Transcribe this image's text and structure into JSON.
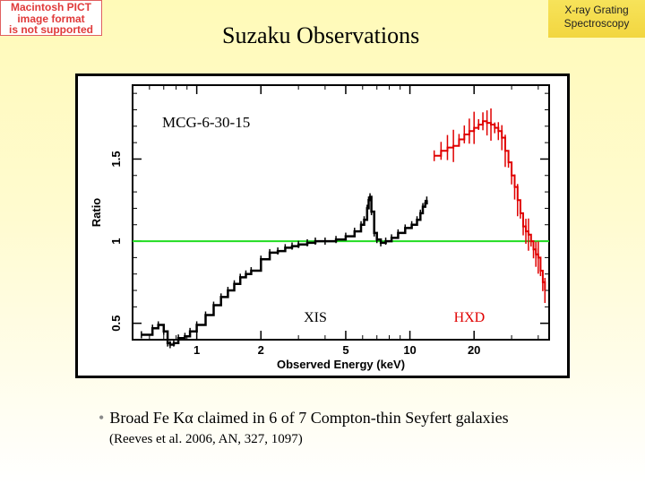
{
  "placeholder": {
    "lines": [
      "Macintosh PICT",
      "image format",
      "is not supported"
    ]
  },
  "title": "Suzaku Observations",
  "corner_label": {
    "line1": "X-ray Grating",
    "line2": "Spectroscopy"
  },
  "colors": {
    "xis": "#000000",
    "hxd": "#e00000",
    "unity_line": "#22dd22",
    "corner_bg": "#f4dc4c"
  },
  "chart_data": {
    "type": "line",
    "title": "MCG-6-30-15",
    "xlabel": "Observed Energy (keV)",
    "ylabel": "Ratio",
    "x_scale": "log",
    "xlim": [
      0.5,
      45
    ],
    "ylim": [
      0.4,
      1.95
    ],
    "x_ticks": [
      1,
      2,
      5,
      10,
      20
    ],
    "x_tick_labels": [
      "1",
      "2",
      "5",
      "10",
      "20"
    ],
    "y_ticks": [
      0.5,
      1,
      1.5
    ],
    "y_tick_labels": [
      "0.5",
      "1",
      "1.5"
    ],
    "reference_line": 1.0,
    "annotations": [
      "XIS",
      "HXD"
    ],
    "series": [
      {
        "name": "XIS",
        "color": "#000000",
        "x": [
          0.55,
          0.62,
          0.66,
          0.7,
          0.73,
          0.75,
          0.78,
          0.82,
          0.88,
          0.93,
          1.0,
          1.1,
          1.2,
          1.3,
          1.4,
          1.5,
          1.6,
          1.7,
          1.8,
          2.0,
          2.2,
          2.4,
          2.6,
          2.8,
          3.0,
          3.3,
          3.6,
          4.0,
          4.5,
          5.0,
          5.5,
          5.9,
          6.1,
          6.3,
          6.4,
          6.5,
          6.6,
          6.8,
          7.0,
          7.3,
          7.7,
          8.2,
          8.8,
          9.5,
          10.2,
          10.8,
          11.2,
          11.5,
          11.8,
          12.0
        ],
        "y": [
          0.43,
          0.47,
          0.49,
          0.45,
          0.38,
          0.37,
          0.38,
          0.41,
          0.42,
          0.45,
          0.49,
          0.55,
          0.61,
          0.66,
          0.7,
          0.74,
          0.78,
          0.8,
          0.82,
          0.89,
          0.93,
          0.94,
          0.96,
          0.97,
          0.98,
          0.99,
          1.0,
          1.0,
          1.01,
          1.03,
          1.06,
          1.1,
          1.13,
          1.2,
          1.25,
          1.27,
          1.18,
          1.05,
          1.01,
          0.99,
          1.0,
          1.02,
          1.05,
          1.08,
          1.1,
          1.13,
          1.17,
          1.21,
          1.23,
          1.25
        ]
      },
      {
        "name": "HXD",
        "color": "#e00000",
        "x": [
          13,
          14,
          15,
          16,
          17,
          18,
          19,
          20,
          21,
          22,
          23,
          24,
          25,
          26,
          27,
          28,
          29,
          30,
          31,
          32,
          33,
          34,
          35,
          36,
          37,
          38,
          39,
          40,
          41,
          42,
          43
        ],
        "y": [
          1.52,
          1.55,
          1.57,
          1.58,
          1.62,
          1.65,
          1.67,
          1.69,
          1.71,
          1.73,
          1.72,
          1.71,
          1.69,
          1.67,
          1.63,
          1.55,
          1.48,
          1.4,
          1.33,
          1.25,
          1.17,
          1.09,
          1.06,
          1.04,
          1.0,
          0.95,
          0.92,
          0.9,
          0.82,
          0.75,
          0.7
        ]
      }
    ]
  },
  "bullet": {
    "marker": "•",
    "text": "Broad Fe Kα claimed in 6 of 7 Compton-thin Seyfert galaxies"
  },
  "reference": "(Reeves et al. 2006, AN, 327, 1097)"
}
